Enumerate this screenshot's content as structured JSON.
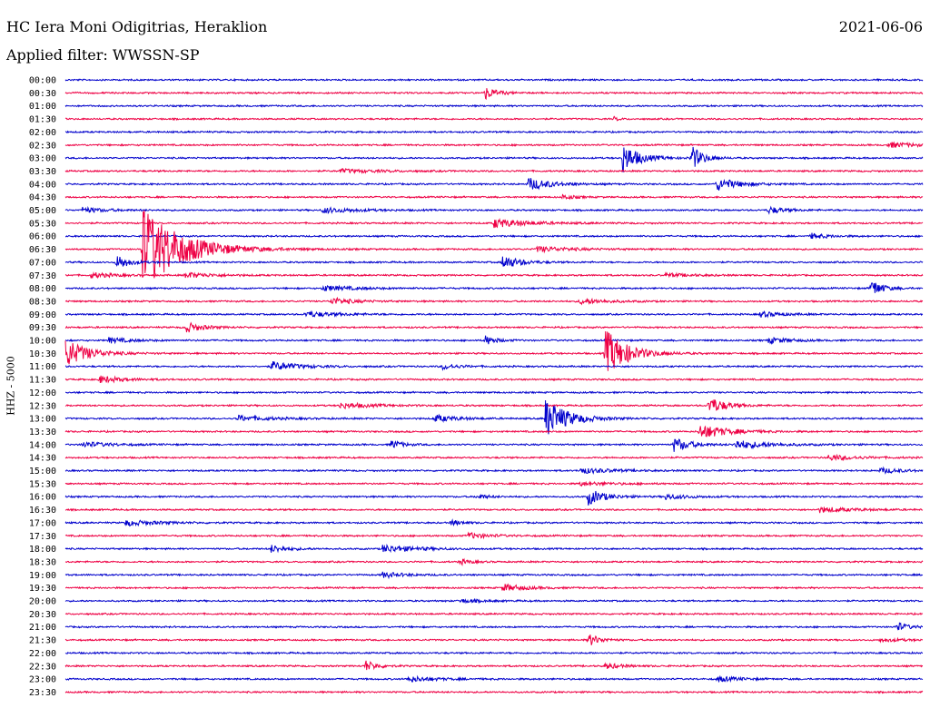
{
  "header": {
    "station": "HC Iera Moni Odigitrias, Heraklion",
    "date": "2021-06-06",
    "filter": "Applied filter: WWSSN-SP",
    "channel_label": "HHZ - 5000"
  },
  "colors": {
    "even_trace": "#0000cc",
    "odd_trace": "#ee0044",
    "background": "#ffffff"
  },
  "chart_data": {
    "type": "line",
    "title": "HC Iera Moni Odigitrias, Heraklion",
    "subtitle": "Applied filter: WWSSN-SP",
    "ylabel": "HHZ - 5000",
    "xlabel": "",
    "row_labels": [
      "00:00",
      "00:30",
      "01:00",
      "01:30",
      "02:00",
      "02:30",
      "03:00",
      "03:30",
      "04:00",
      "04:30",
      "05:00",
      "05:30",
      "06:00",
      "06:30",
      "07:00",
      "07:30",
      "08:00",
      "08:30",
      "09:00",
      "09:30",
      "10:00",
      "10:30",
      "11:00",
      "11:30",
      "12:00",
      "12:30",
      "13:00",
      "13:30",
      "14:00",
      "14:30",
      "15:00",
      "15:30",
      "16:00",
      "16:30",
      "17:00",
      "17:30",
      "18:00",
      "18:30",
      "19:00",
      "19:30",
      "20:00",
      "20:30",
      "21:00",
      "21:30",
      "22:00",
      "22:30",
      "23:00",
      "23:30"
    ],
    "x_range_minutes": [
      0,
      30
    ],
    "series_colors": [
      "#0000cc",
      "#ee0044"
    ],
    "events": [
      {
        "row": 1,
        "t": 0.49,
        "amp": 7,
        "dur": 0.02
      },
      {
        "row": 3,
        "t": 0.64,
        "amp": 2,
        "dur": 0.01
      },
      {
        "row": 5,
        "t": 0.96,
        "amp": 3,
        "dur": 0.05
      },
      {
        "row": 6,
        "t": 0.65,
        "amp": 16,
        "dur": 0.03
      },
      {
        "row": 6,
        "t": 0.73,
        "amp": 14,
        "dur": 0.02
      },
      {
        "row": 7,
        "t": 0.32,
        "amp": 2,
        "dur": 0.08
      },
      {
        "row": 8,
        "t": 0.54,
        "amp": 7,
        "dur": 0.04
      },
      {
        "row": 8,
        "t": 0.76,
        "amp": 7,
        "dur": 0.04
      },
      {
        "row": 9,
        "t": 0.58,
        "amp": 3,
        "dur": 0.02
      },
      {
        "row": 10,
        "t": 0.02,
        "amp": 3,
        "dur": 0.04
      },
      {
        "row": 10,
        "t": 0.3,
        "amp": 3,
        "dur": 0.06
      },
      {
        "row": 10,
        "t": 0.82,
        "amp": 4,
        "dur": 0.03
      },
      {
        "row": 11,
        "t": 0.5,
        "amp": 5,
        "dur": 0.06
      },
      {
        "row": 12,
        "t": 0.87,
        "amp": 3,
        "dur": 0.03
      },
      {
        "row": 13,
        "t": 0.09,
        "amp": 48,
        "dur": 0.07
      },
      {
        "row": 13,
        "t": 0.55,
        "amp": 3,
        "dur": 0.06
      },
      {
        "row": 14,
        "t": 0.06,
        "amp": 9,
        "dur": 0.02
      },
      {
        "row": 14,
        "t": 0.51,
        "amp": 8,
        "dur": 0.03
      },
      {
        "row": 15,
        "t": 0.03,
        "amp": 3,
        "dur": 0.04
      },
      {
        "row": 15,
        "t": 0.14,
        "amp": 3,
        "dur": 0.05
      },
      {
        "row": 15,
        "t": 0.7,
        "amp": 2,
        "dur": 0.05
      },
      {
        "row": 16,
        "t": 0.94,
        "amp": 10,
        "dur": 0.02
      },
      {
        "row": 16,
        "t": 0.3,
        "amp": 3,
        "dur": 0.06
      },
      {
        "row": 17,
        "t": 0.31,
        "amp": 4,
        "dur": 0.04
      },
      {
        "row": 17,
        "t": 0.6,
        "amp": 3,
        "dur": 0.05
      },
      {
        "row": 18,
        "t": 0.28,
        "amp": 3,
        "dur": 0.06
      },
      {
        "row": 18,
        "t": 0.81,
        "amp": 3,
        "dur": 0.04
      },
      {
        "row": 19,
        "t": 0.14,
        "amp": 6,
        "dur": 0.03
      },
      {
        "row": 20,
        "t": 0.05,
        "amp": 3,
        "dur": 0.04
      },
      {
        "row": 20,
        "t": 0.49,
        "amp": 5,
        "dur": 0.02
      },
      {
        "row": 20,
        "t": 0.82,
        "amp": 3,
        "dur": 0.04
      },
      {
        "row": 21,
        "t": 0.0,
        "amp": 16,
        "dur": 0.04
      },
      {
        "row": 21,
        "t": 0.63,
        "amp": 26,
        "dur": 0.04
      },
      {
        "row": 22,
        "t": 0.24,
        "amp": 5,
        "dur": 0.05
      },
      {
        "row": 22,
        "t": 0.44,
        "amp": 3,
        "dur": 0.03
      },
      {
        "row": 23,
        "t": 0.04,
        "amp": 4,
        "dur": 0.04
      },
      {
        "row": 25,
        "t": 0.32,
        "amp": 3,
        "dur": 0.06
      },
      {
        "row": 25,
        "t": 0.75,
        "amp": 10,
        "dur": 0.03
      },
      {
        "row": 26,
        "t": 0.2,
        "amp": 3,
        "dur": 0.06
      },
      {
        "row": 26,
        "t": 0.43,
        "amp": 4,
        "dur": 0.04
      },
      {
        "row": 26,
        "t": 0.56,
        "amp": 22,
        "dur": 0.04
      },
      {
        "row": 27,
        "t": 0.74,
        "amp": 8,
        "dur": 0.05
      },
      {
        "row": 28,
        "t": 0.02,
        "amp": 3,
        "dur": 0.05
      },
      {
        "row": 28,
        "t": 0.38,
        "amp": 5,
        "dur": 0.02
      },
      {
        "row": 28,
        "t": 0.71,
        "amp": 8,
        "dur": 0.03
      },
      {
        "row": 28,
        "t": 0.78,
        "amp": 5,
        "dur": 0.06
      },
      {
        "row": 29,
        "t": 0.89,
        "amp": 3,
        "dur": 0.05
      },
      {
        "row": 30,
        "t": 0.6,
        "amp": 3,
        "dur": 0.06
      },
      {
        "row": 30,
        "t": 0.95,
        "amp": 3,
        "dur": 0.04
      },
      {
        "row": 31,
        "t": 0.6,
        "amp": 2,
        "dur": 0.06
      },
      {
        "row": 32,
        "t": 0.61,
        "amp": 9,
        "dur": 0.03
      },
      {
        "row": 32,
        "t": 0.7,
        "amp": 3,
        "dur": 0.04
      },
      {
        "row": 32,
        "t": 0.48,
        "amp": 3,
        "dur": 0.02
      },
      {
        "row": 33,
        "t": 0.88,
        "amp": 3,
        "dur": 0.06
      },
      {
        "row": 34,
        "t": 0.07,
        "amp": 3,
        "dur": 0.06
      },
      {
        "row": 34,
        "t": 0.45,
        "amp": 3,
        "dur": 0.02
      },
      {
        "row": 35,
        "t": 0.47,
        "amp": 3,
        "dur": 0.04
      },
      {
        "row": 36,
        "t": 0.24,
        "amp": 4,
        "dur": 0.03
      },
      {
        "row": 36,
        "t": 0.37,
        "amp": 4,
        "dur": 0.06
      },
      {
        "row": 37,
        "t": 0.46,
        "amp": 3,
        "dur": 0.02
      },
      {
        "row": 38,
        "t": 0.37,
        "amp": 3,
        "dur": 0.04
      },
      {
        "row": 39,
        "t": 0.51,
        "amp": 4,
        "dur": 0.04
      },
      {
        "row": 40,
        "t": 0.46,
        "amp": 2,
        "dur": 0.04
      },
      {
        "row": 42,
        "t": 0.97,
        "amp": 5,
        "dur": 0.02
      },
      {
        "row": 43,
        "t": 0.61,
        "amp": 7,
        "dur": 0.02
      },
      {
        "row": 43,
        "t": 0.95,
        "amp": 2,
        "dur": 0.04
      },
      {
        "row": 45,
        "t": 0.35,
        "amp": 6,
        "dur": 0.02
      },
      {
        "row": 45,
        "t": 0.63,
        "amp": 3,
        "dur": 0.03
      },
      {
        "row": 46,
        "t": 0.4,
        "amp": 3,
        "dur": 0.05
      },
      {
        "row": 46,
        "t": 0.76,
        "amp": 3,
        "dur": 0.04
      }
    ]
  }
}
